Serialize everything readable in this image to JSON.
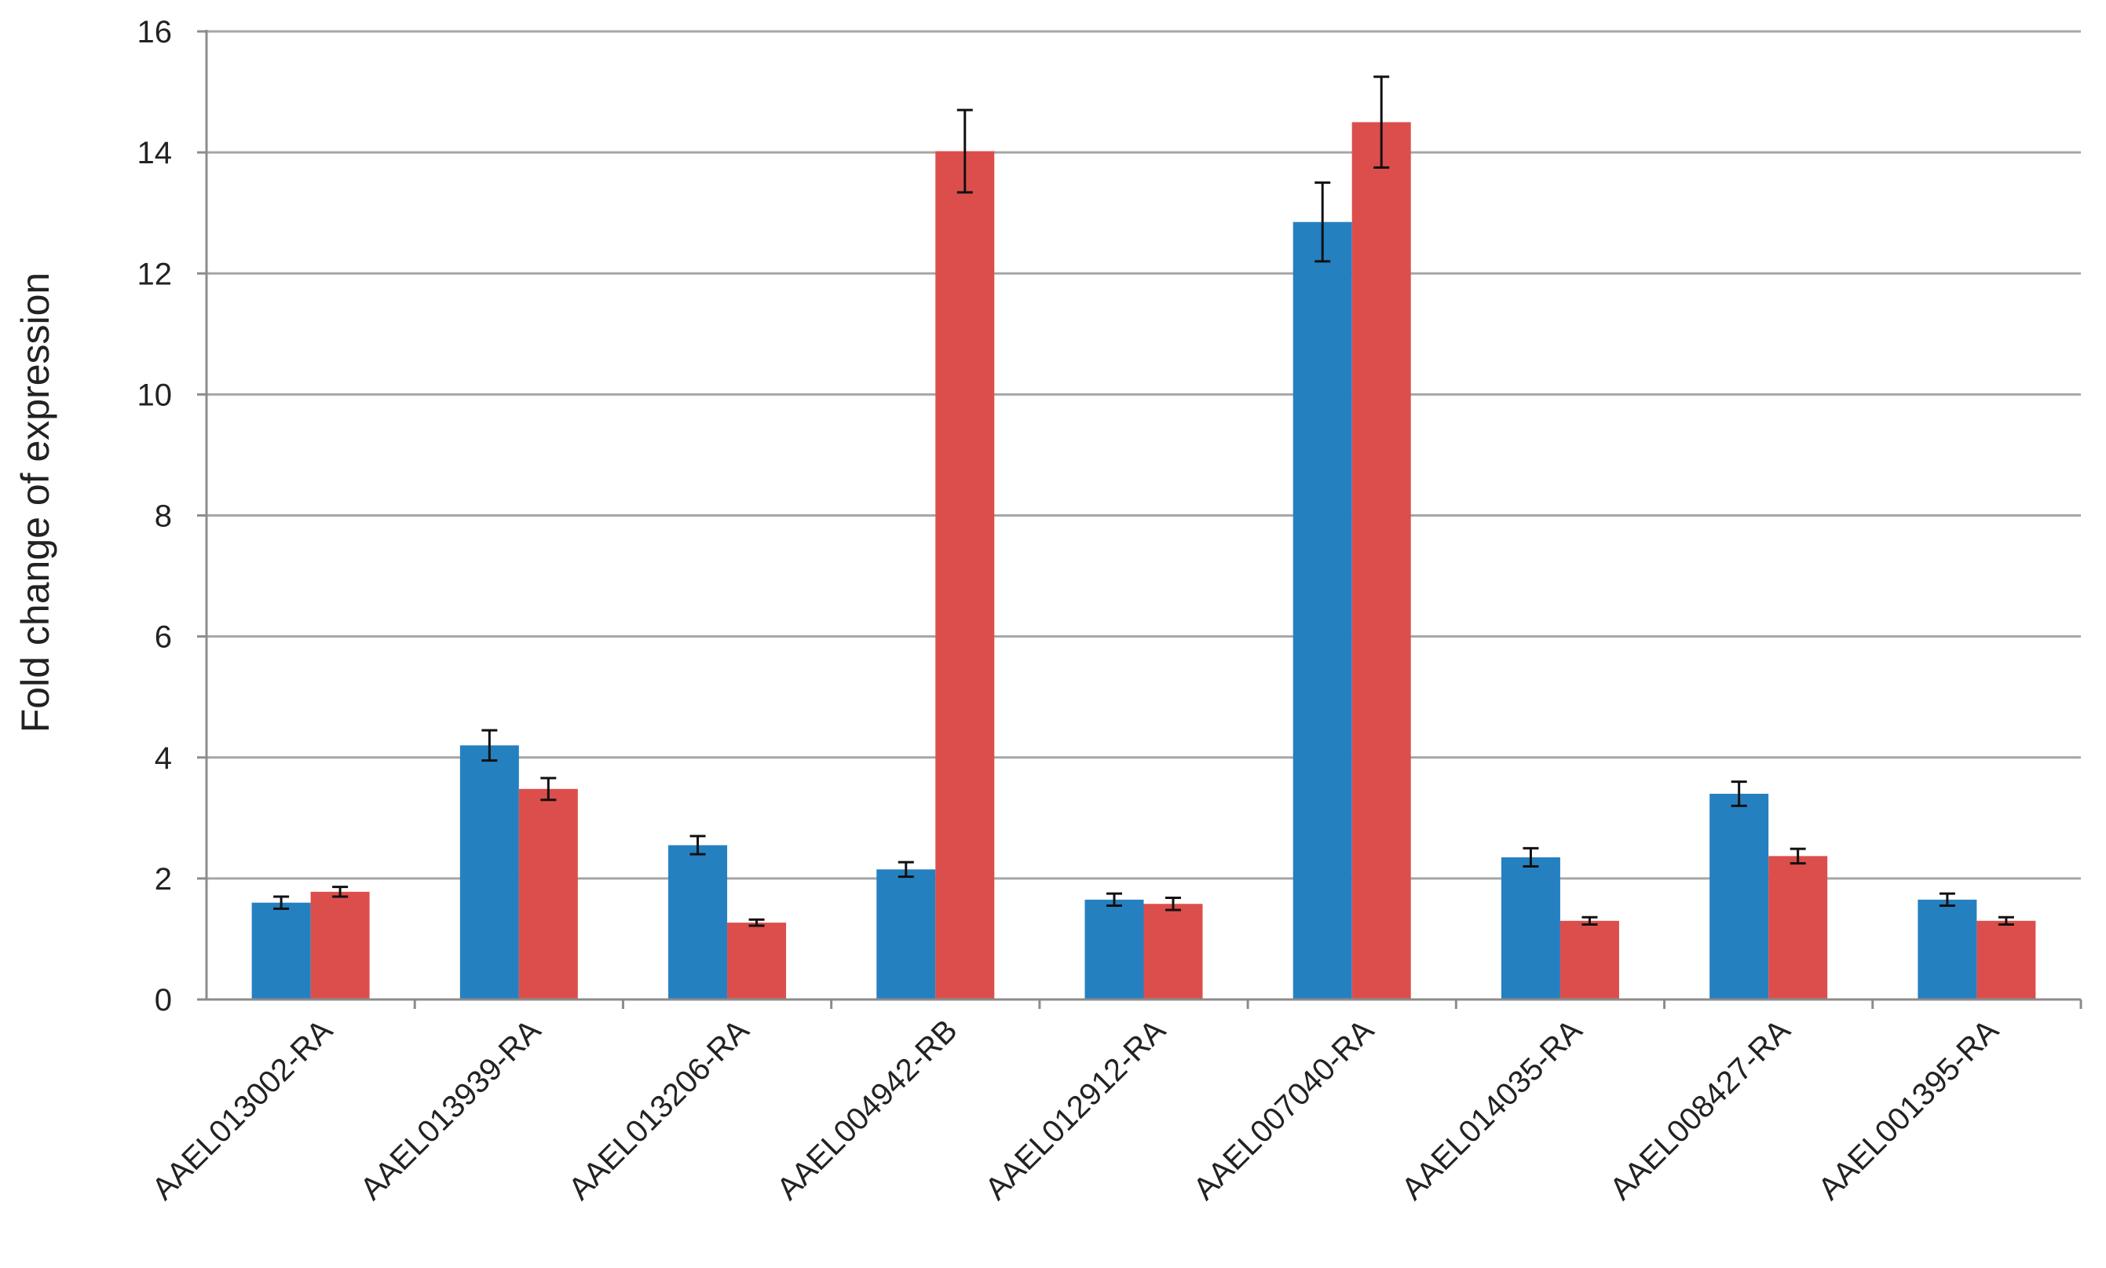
{
  "chart_data": {
    "type": "bar",
    "title": "",
    "xlabel": "",
    "ylabel": "Fold change of expression",
    "ylim": [
      0,
      16
    ],
    "yticks": [
      "0",
      "2",
      "4",
      "6",
      "8",
      "10",
      "12",
      "14",
      "16"
    ],
    "grid": true,
    "legend": "none",
    "categories": [
      "AAEL013002-RA",
      "AAEL013939-RA",
      "AAEL013206-RA",
      "AAEL004942-RB",
      "AAEL012912-RA",
      "AAEL007040-RA",
      "AAEL014035-RA",
      "AAEL008427-RA",
      "AAEL001395-RA"
    ],
    "series": [
      {
        "color": "#2580c0",
        "values": [
          1.6,
          4.2,
          2.55,
          2.15,
          1.65,
          12.85,
          2.35,
          3.4,
          1.65
        ],
        "errors": [
          0.1,
          0.25,
          0.15,
          0.12,
          0.1,
          0.65,
          0.15,
          0.2,
          0.1
        ]
      },
      {
        "color": "#dc4e4b",
        "values": [
          1.78,
          3.48,
          1.27,
          14.02,
          1.58,
          14.5,
          1.3,
          2.37,
          1.3
        ],
        "errors": [
          0.08,
          0.18,
          0.05,
          0.68,
          0.1,
          0.75,
          0.06,
          0.12,
          0.06
        ]
      }
    ]
  }
}
